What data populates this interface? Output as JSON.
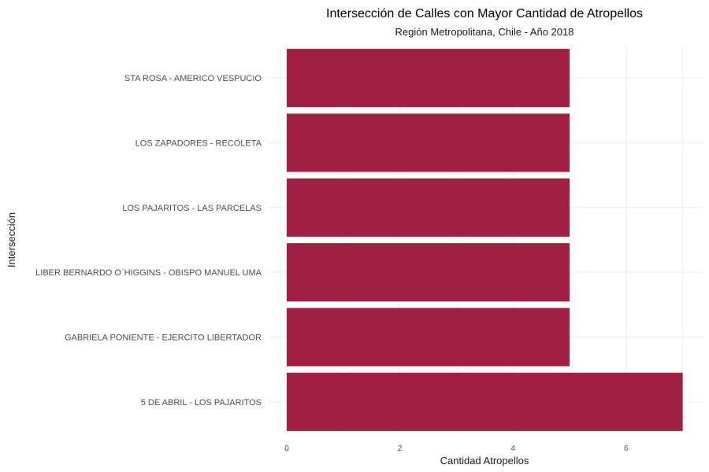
{
  "chart_data": {
    "type": "bar",
    "orientation": "horizontal",
    "title": "Intersección de Calles con Mayor Cantidad de Atropellos",
    "subtitle": "Región Metropolitana, Chile - Año 2018",
    "xlabel": "Cantidad Atropellos",
    "ylabel": "Intersección",
    "categories": [
      "STA ROSA - AMERICO VESPUCIO",
      "LOS ZAPADORES - RECOLETA",
      "LOS PAJARITOS - LAS PARCELAS",
      "LIBER BERNARDO O`HIGGINS - OBISPO MANUEL UMA",
      "GABRIELA PONIENTE - EJERCITO LIBERTADOR",
      "5 DE ABRIL - LOS PAJARITOS"
    ],
    "values": [
      5,
      5,
      5,
      5,
      5,
      7
    ],
    "xlim": [
      0,
      7.35
    ],
    "xticks": [
      0,
      2,
      4,
      6
    ],
    "xtick_labels": [
      "0",
      "2",
      "4",
      "6"
    ],
    "grid": true,
    "bar_color": "#A11F42",
    "grid_color": "#EBEBEB"
  }
}
